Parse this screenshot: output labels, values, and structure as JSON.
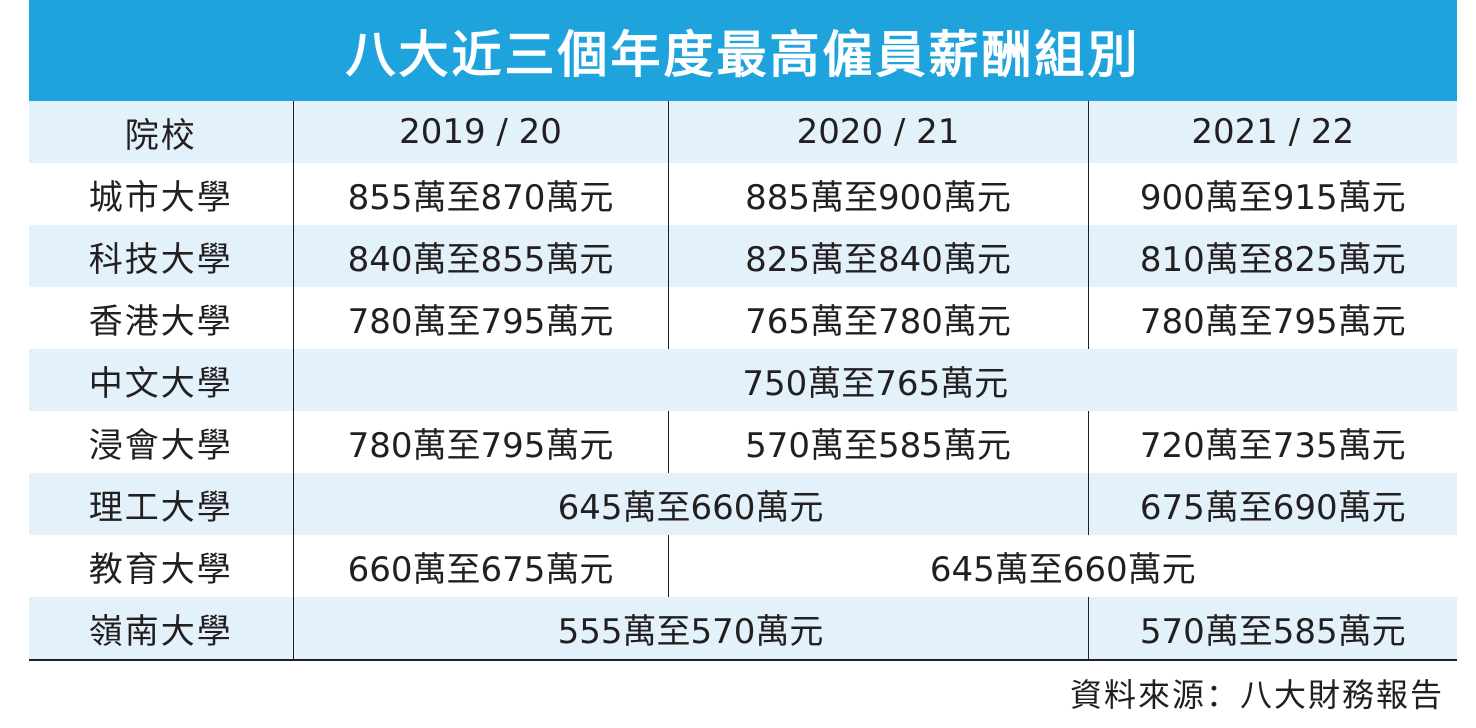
{
  "title": "八大近三個年度最高僱員薪酬組別",
  "header": {
    "school": "院校",
    "years": [
      "2019 / 20",
      "2020 / 21",
      "2021 / 22"
    ]
  },
  "rows": [
    {
      "school": "城市大學",
      "cells": [
        "855萬至870萬元",
        "885萬至900萬元",
        "900萬至915萬元"
      ]
    },
    {
      "school": "科技大學",
      "cells": [
        "840萬至855萬元",
        "825萬至840萬元",
        "810萬至825萬元"
      ]
    },
    {
      "school": "香港大學",
      "cells": [
        "780萬至795萬元",
        "765萬至780萬元",
        "780萬至795萬元"
      ]
    },
    {
      "school": "中文大學",
      "cells": [
        "750萬至765萬元"
      ]
    },
    {
      "school": "浸會大學",
      "cells": [
        "780萬至795萬元",
        "570萬至585萬元",
        "720萬至735萬元"
      ]
    },
    {
      "school": "理工大學",
      "cells": [
        "645萬至660萬元",
        "675萬至690萬元"
      ]
    },
    {
      "school": "教育大學",
      "cells": [
        "660萬至675萬元",
        "645萬至660萬元"
      ]
    },
    {
      "school": "嶺南大學",
      "cells": [
        "555萬至570萬元",
        "570萬至585萬元"
      ]
    }
  ],
  "source": "資料來源：八大財務報告",
  "colors": {
    "title_bar": "#1ea3dc",
    "stripe": "#e3f1fb",
    "text": "#231f20"
  }
}
